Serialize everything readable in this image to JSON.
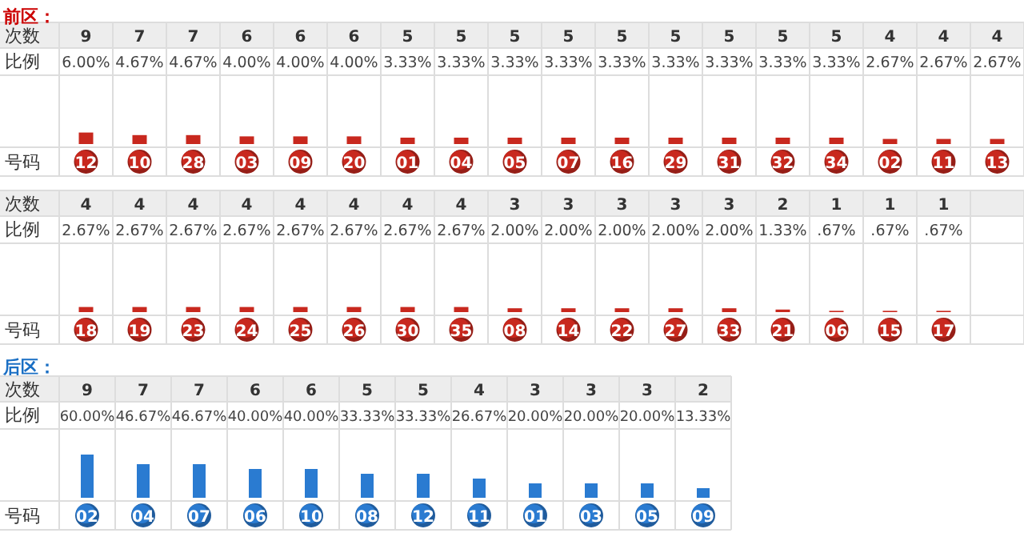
{
  "chart_data": [
    {
      "type": "bar",
      "title": "前区：",
      "color": "#c8281e",
      "data_labels": true,
      "annotations": [
        "次数",
        "比例",
        "号码",
        "6.00%",
        "4.67%",
        "4.67%",
        "4.00%",
        "4.00%",
        "4.00%",
        "3.33%",
        "3.33%",
        "3.33%",
        "3.33%",
        "3.33%",
        "3.33%",
        "3.33%",
        "3.33%",
        "3.33%",
        "2.67%",
        "2.67%",
        "2.67%"
      ],
      "categories": [
        "12",
        "10",
        "28",
        "03",
        "09",
        "20",
        "01",
        "04",
        "05",
        "07",
        "16",
        "29",
        "31",
        "32",
        "34",
        "02",
        "11",
        "13"
      ],
      "values": [
        9,
        7,
        7,
        6,
        6,
        6,
        5,
        5,
        5,
        5,
        5,
        5,
        5,
        5,
        5,
        4,
        4,
        4
      ]
    },
    {
      "type": "bar",
      "color": "#c8281e",
      "data_labels": true,
      "annotations": [
        "次数",
        "比例",
        "号码",
        "2.67%",
        "2.67%",
        "2.67%",
        "2.67%",
        "2.67%",
        "2.67%",
        "2.67%",
        "2.67%",
        "2.00%",
        "2.00%",
        "2.00%",
        "2.00%",
        "2.00%",
        "1.33%",
        ".67%",
        ".67%",
        ".67%"
      ],
      "categories": [
        "18",
        "19",
        "23",
        "24",
        "25",
        "26",
        "30",
        "35",
        "08",
        "14",
        "22",
        "27",
        "33",
        "21",
        "06",
        "15",
        "17"
      ],
      "values": [
        4,
        4,
        4,
        4,
        4,
        4,
        4,
        4,
        3,
        3,
        3,
        3,
        3,
        2,
        1,
        1,
        1
      ]
    },
    {
      "type": "bar",
      "title": "后区：",
      "color": "#2a7bd1",
      "data_labels": true,
      "annotations": [
        "次数",
        "比例",
        "号码",
        "60.00%",
        "46.67%",
        "46.67%",
        "40.00%",
        "40.00%",
        "33.33%",
        "33.33%",
        "26.67%",
        "20.00%",
        "20.00%",
        "20.00%",
        "13.33%"
      ],
      "categories": [
        "02",
        "04",
        "07",
        "06",
        "10",
        "08",
        "12",
        "11",
        "01",
        "03",
        "05",
        "09"
      ],
      "values": [
        9,
        7,
        7,
        6,
        6,
        5,
        5,
        4,
        3,
        3,
        3,
        2
      ]
    }
  ]
}
